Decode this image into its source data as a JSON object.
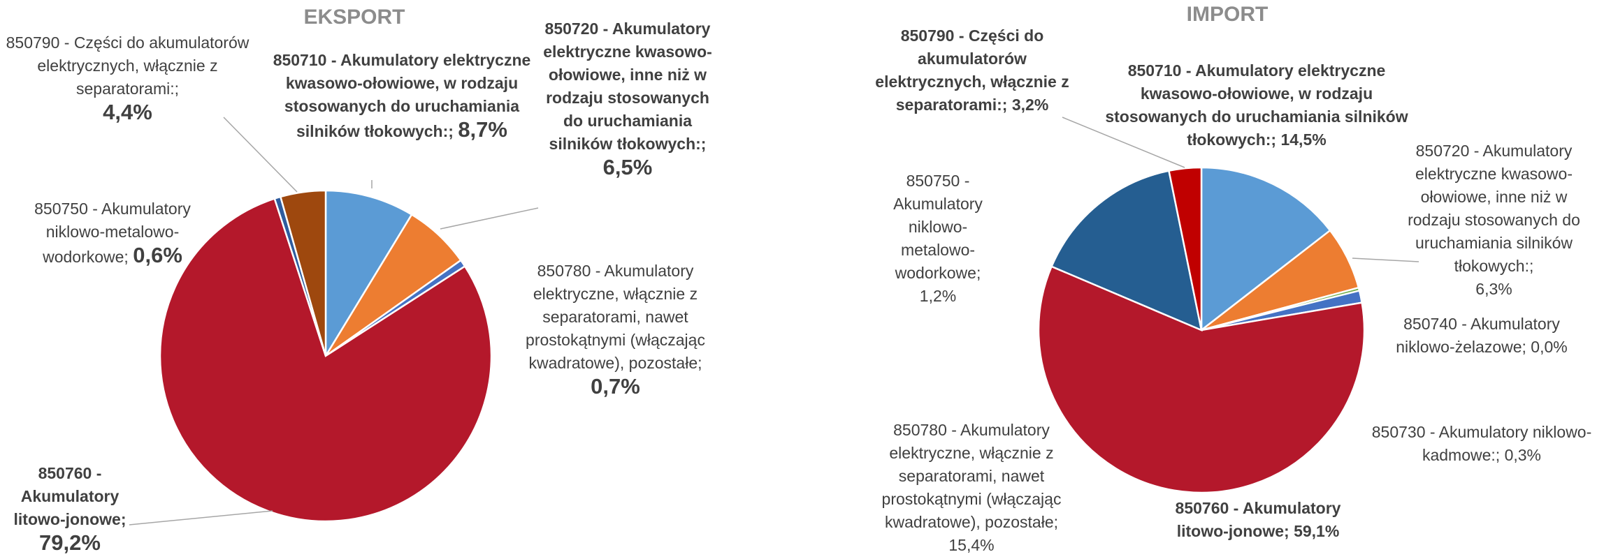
{
  "chart_data": [
    {
      "type": "pie",
      "title": "EKSPORT",
      "categories": [
        "850710 - Akumulatory elektryczne kwasowo-ołowiowe, w rodzaju stosowanych do uruchamiania silników tłokowych:;",
        "850720 - Akumulatory elektryczne kwasowo-ołowiowe, inne niż w rodzaju stosowanych do uruchamiania silników tłokowych:;",
        "850780 - Akumulatory elektryczne, włącznie z separatorami, nawet prostokątnymi (włączając kwadratowe), pozostałe;",
        "850760 - Akumulatory litowo-jonowe;",
        "850750 - Akumulatory niklowo-metalowo-wodorkowe;",
        "850790 - Części do akumulatorów elektrycznych, włącznie z separatorami:;"
      ],
      "values": [
        8.7,
        6.5,
        0.7,
        79.2,
        0.6,
        4.4
      ],
      "value_labels": [
        "8,7%",
        "6,5%",
        "0,7%",
        "79,2%",
        "0,6%",
        "4,4%"
      ],
      "colors": [
        "#5b9bd5",
        "#ed7d31",
        "#4472c4",
        "#b4182b",
        "#2e5c9e",
        "#9e480e"
      ]
    },
    {
      "type": "pie",
      "title": "IMPORT",
      "categories": [
        "850710 - Akumulatory elektryczne kwasowo-ołowiowe, w rodzaju stosowanych do uruchamiania silników tłokowych:;",
        "850720 - Akumulatory elektryczne kwasowo-ołowiowe, inne niż w rodzaju stosowanych do uruchamiania silników tłokowych:;",
        "850740 - Akumulatory niklowo-żelazowe;",
        "850730 - Akumulatory niklowo-kadmowe:;",
        "850750 - Akumulatory niklowo-metalowo-wodorkowe;",
        "850760 - Akumulatory litowo-jonowe;",
        "850780 - Akumulatory elektryczne, włącznie z separatorami, nawet prostokątnymi (włączając kwadratowe), pozostałe;",
        "850790 - Części do akumulatorów elektrycznych, włącznie z separatorami:;"
      ],
      "values": [
        14.5,
        6.3,
        0.0,
        0.3,
        1.2,
        59.1,
        15.4,
        3.2
      ],
      "value_labels": [
        "14,5%",
        "6,3%",
        "0,0%",
        "0,3%",
        "1,2%",
        "59,1%",
        "15,4%",
        "3,2%"
      ],
      "colors": [
        "#5b9bd5",
        "#ed7d31",
        "#a5a5a5",
        "#70ad47",
        "#4472c4",
        "#b4182b",
        "#255e91",
        "#c00000"
      ]
    }
  ]
}
